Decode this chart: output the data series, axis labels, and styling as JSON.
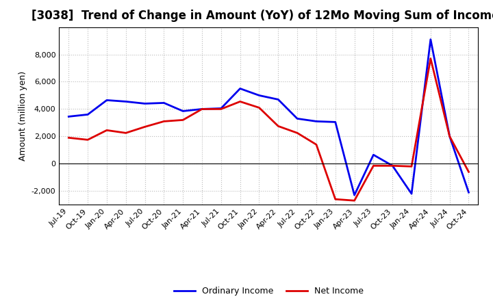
{
  "title": "[3038]  Trend of Change in Amount (YoY) of 12Mo Moving Sum of Incomes",
  "ylabel": "Amount (million yen)",
  "xlabels": [
    "Jul-19",
    "Oct-19",
    "Jan-20",
    "Apr-20",
    "Jul-20",
    "Oct-20",
    "Jan-21",
    "Apr-21",
    "Jul-21",
    "Oct-21",
    "Jan-22",
    "Apr-22",
    "Jul-22",
    "Oct-22",
    "Jan-23",
    "Apr-23",
    "Jul-23",
    "Oct-23",
    "Jan-24",
    "Apr-24",
    "Jul-24",
    "Oct-24"
  ],
  "ordinary_income": [
    3450,
    3600,
    4650,
    4550,
    4400,
    4450,
    3850,
    4000,
    4050,
    5500,
    5000,
    4700,
    3300,
    3100,
    3050,
    -2300,
    650,
    -150,
    -2200,
    9100,
    2000,
    -2100
  ],
  "net_income": [
    1900,
    1750,
    2450,
    2250,
    2700,
    3100,
    3200,
    4000,
    4000,
    4550,
    4100,
    2750,
    2250,
    1400,
    -2600,
    -2700,
    -150,
    -150,
    -200,
    7700,
    2000,
    -600
  ],
  "ordinary_color": "#0000ee",
  "net_color": "#dd0000",
  "ylim": [
    -3000,
    10000
  ],
  "yticks": [
    -2000,
    0,
    2000,
    4000,
    6000,
    8000
  ],
  "background_color": "#ffffff",
  "grid_color": "#bbbbbb",
  "line_width": 2.0,
  "legend_labels": [
    "Ordinary Income",
    "Net Income"
  ],
  "title_fontsize": 12,
  "tick_fontsize": 8,
  "ylabel_fontsize": 9
}
